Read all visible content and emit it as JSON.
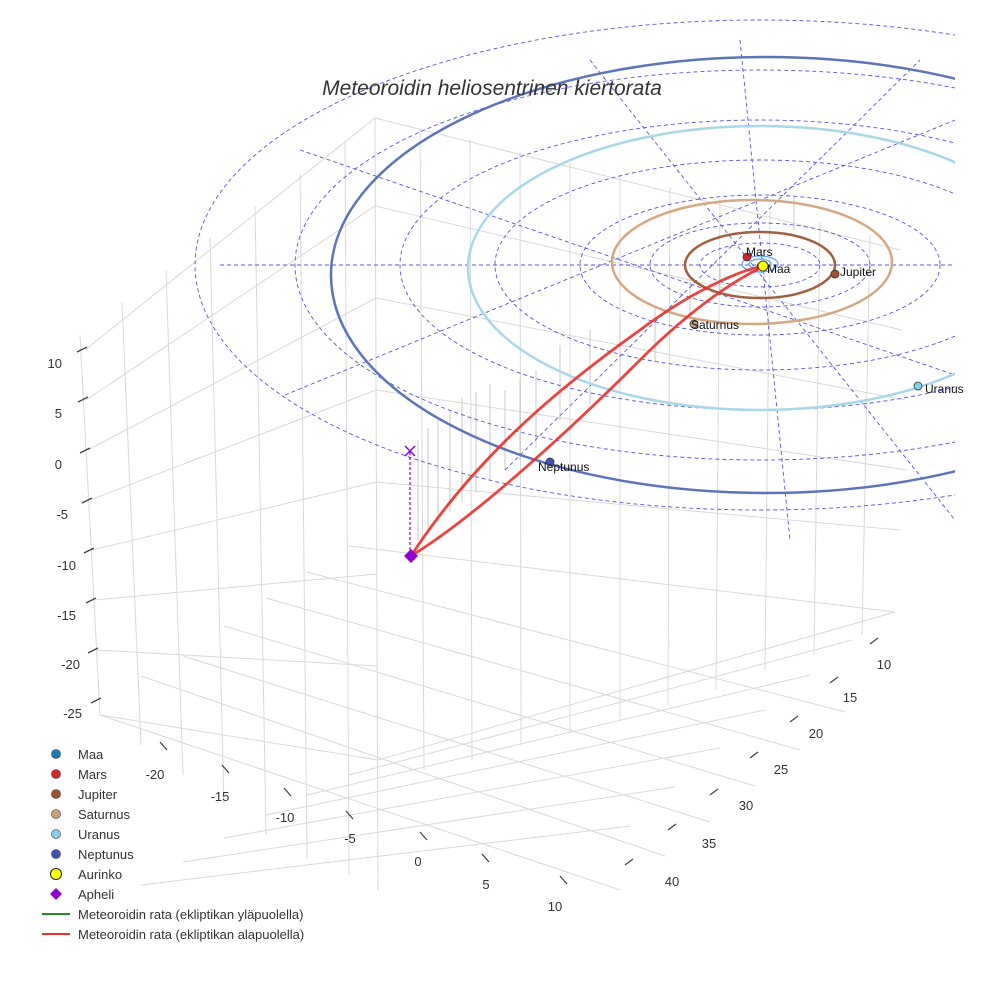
{
  "chart_data": {
    "type": "scatter3d",
    "title": "Meteoroidin heliosentrinen kiertorata",
    "axes": {
      "x": {
        "ticks": [
          -20,
          -15,
          -10,
          -5,
          0,
          5,
          10
        ]
      },
      "y": {
        "ticks": [
          10,
          15,
          20,
          25,
          30,
          35,
          40
        ]
      },
      "z": {
        "ticks": [
          10,
          5,
          0,
          -5,
          -10,
          -15,
          -20,
          -25
        ]
      }
    },
    "planets": [
      {
        "name": "Maa",
        "color": "#1f77b4"
      },
      {
        "name": "Mars",
        "color": "#d62728"
      },
      {
        "name": "Jupiter",
        "color": "#a0522d"
      },
      {
        "name": "Saturnus",
        "color": "#c8a27a"
      },
      {
        "name": "Uranus",
        "color": "#87ceeb"
      },
      {
        "name": "Neptunus",
        "color": "#3f51b5"
      }
    ],
    "orbit_colors": {
      "Jupiter": "#a0603f",
      "Saturnus": "#d4a882",
      "Uranus": "#a8d8e8",
      "Neptunus": "#5c74b8"
    },
    "sun": {
      "name": "Aurinko",
      "color": "#ffff00"
    },
    "aphelion": {
      "name": "Apheli",
      "color": "#9400d3"
    },
    "series": [
      {
        "name": "Meteoroidin rata (ekliptikan yläpuolella)",
        "color": "#228b22"
      },
      {
        "name": "Meteoroidin rata (ekliptikan alapuolella)",
        "color": "#e8302c"
      }
    ],
    "legend_position": "bottom-left",
    "grid": true
  },
  "legend": [
    {
      "label": "Maa",
      "kind": "dot",
      "color": "#1f77b4"
    },
    {
      "label": "Mars",
      "kind": "dot",
      "color": "#d62728"
    },
    {
      "label": "Jupiter",
      "kind": "dot",
      "color": "#a0522d"
    },
    {
      "label": "Saturnus",
      "kind": "dot",
      "color": "#c8a27a"
    },
    {
      "label": "Uranus",
      "kind": "dot",
      "color": "#87ceeb"
    },
    {
      "label": "Neptunus",
      "kind": "dot",
      "color": "#3f51b5"
    },
    {
      "label": "Aurinko",
      "kind": "ring",
      "color": "#ffff00"
    },
    {
      "label": "Apheli",
      "kind": "diamond",
      "color": "#9400d3"
    },
    {
      "label": "Meteoroidin rata (ekliptikan yläpuolella)",
      "kind": "line",
      "color": "#228b22"
    },
    {
      "label": "Meteoroidin rata (ekliptikan alapuolella)",
      "kind": "line",
      "color": "#e8302c"
    }
  ]
}
